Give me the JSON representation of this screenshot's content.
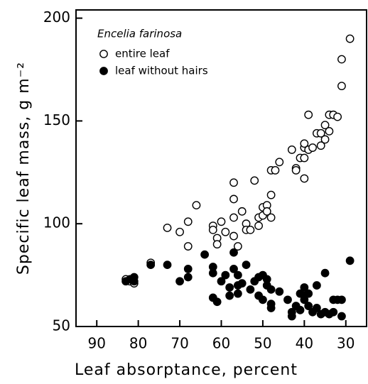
{
  "chart_data": {
    "type": "scatter",
    "xlabel": "Leaf absorptance, percent",
    "ylabel": "Specific leaf mass, g m⁻²",
    "legend_title": "Encelia farinosa",
    "legend": "upper left",
    "xlim": [
      95,
      25
    ],
    "ylim": [
      50,
      204
    ],
    "xticks": [
      90,
      80,
      70,
      60,
      50,
      40,
      30
    ],
    "yticks": [
      50,
      100,
      150,
      200
    ],
    "series": [
      {
        "name": "entire leaf",
        "color": "#000000",
        "marker": "open",
        "x": [
          83,
          82,
          81,
          77,
          73,
          70,
          68,
          68,
          66,
          62,
          62,
          61,
          61,
          60,
          59,
          57,
          57,
          57,
          57,
          56,
          55,
          54,
          54,
          53,
          52,
          51,
          51,
          50,
          50,
          49,
          49,
          48,
          48,
          48,
          47,
          46,
          43,
          42,
          42,
          41,
          40,
          40,
          40,
          40,
          39,
          39,
          38,
          37,
          36,
          36,
          35,
          35,
          34,
          34,
          33,
          32,
          31,
          31,
          29
        ],
        "values": [
          73,
          72,
          71,
          81,
          98,
          96,
          101,
          89,
          109,
          99,
          97,
          93,
          90,
          101,
          96,
          120,
          112,
          103,
          94,
          89,
          106,
          100,
          97,
          97,
          121,
          103,
          99,
          108,
          104,
          109,
          106,
          114,
          103,
          126,
          126,
          130,
          136,
          127,
          126,
          132,
          137,
          139,
          132,
          122,
          153,
          136,
          137,
          144,
          144,
          138,
          148,
          141,
          153,
          145,
          153,
          152,
          180,
          167,
          190
        ]
      },
      {
        "name": "leaf without hairs",
        "color": "#000000",
        "marker": "filled",
        "x": [
          83,
          82,
          81,
          81,
          77,
          73,
          70,
          68,
          68,
          64,
          62,
          62,
          62,
          61,
          60,
          59,
          58,
          58,
          57,
          57,
          56,
          56,
          56,
          55,
          54,
          53,
          52,
          51,
          51,
          50,
          50,
          49,
          49,
          48,
          48,
          48,
          46,
          44,
          43,
          43,
          42,
          41,
          41,
          40,
          40,
          40,
          39,
          39,
          38,
          37,
          37,
          36,
          35,
          35,
          34,
          33,
          33,
          32,
          31,
          31,
          29
        ],
        "values": [
          72,
          73,
          74,
          72,
          80,
          80,
          72,
          78,
          74,
          85,
          79,
          76,
          64,
          62,
          72,
          75,
          69,
          65,
          86,
          78,
          75,
          70,
          66,
          71,
          80,
          68,
          72,
          74,
          65,
          75,
          63,
          73,
          70,
          68,
          61,
          59,
          67,
          63,
          57,
          55,
          60,
          58,
          66,
          69,
          65,
          63,
          66,
          60,
          57,
          70,
          59,
          56,
          76,
          57,
          56,
          63,
          57,
          63,
          63,
          55,
          82
        ]
      }
    ]
  }
}
